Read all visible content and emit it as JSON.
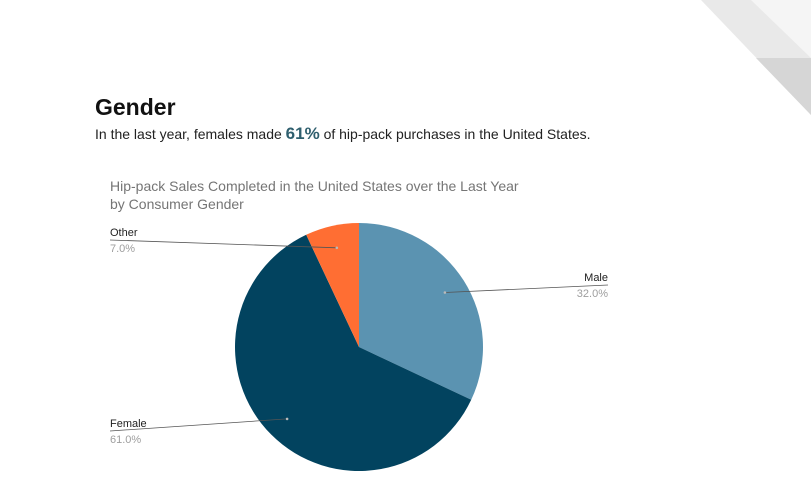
{
  "header": {
    "title": "Gender",
    "subtitle_before": "In the last year, females made ",
    "subtitle_highlight": "61%",
    "subtitle_after": " of hip-pack purchases in the United States."
  },
  "chart_data": {
    "type": "pie",
    "title_lines": [
      "Hip-pack Sales Completed in the United States over the Last Year",
      "by Consumer Gender"
    ],
    "slices": [
      {
        "name": "Male",
        "value": 32.0,
        "label": "32.0%",
        "color": "#5b93b1"
      },
      {
        "name": "Female",
        "value": 61.0,
        "label": "61.0%",
        "color": "#02435f"
      },
      {
        "name": "Other",
        "value": 7.0,
        "label": "7.0%",
        "color": "#ff6e33"
      }
    ],
    "legend": "none",
    "labels": "outside with leader lines"
  },
  "colors": {
    "accent": "#2f5f6e",
    "corner_light": "#e4e4e4",
    "corner_dark": "#d2d2d2"
  }
}
